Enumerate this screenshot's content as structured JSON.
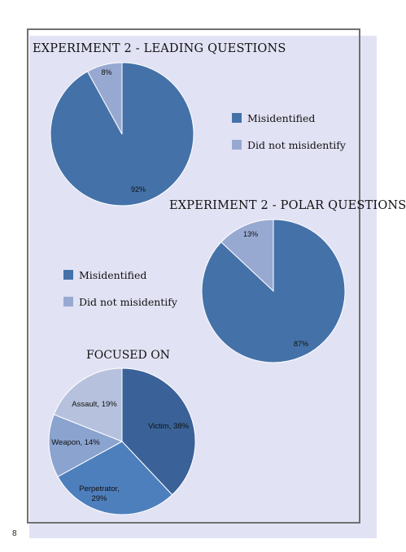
{
  "page_number": "8",
  "colors": {
    "dark_blue": "#4472a8",
    "light_blue": "#98a9d1"
  },
  "chart_data": [
    {
      "type": "pie",
      "title": "EXPERIMENT 2 - LEADING QUESTIONS",
      "categories": [
        "Misidentified",
        "Did not misidentify"
      ],
      "values": [
        92,
        8
      ],
      "data_labels": [
        "92%",
        "8%"
      ],
      "legend": {
        "placement": "right",
        "entries": [
          "Misidentified",
          "Did not misidentify"
        ]
      }
    },
    {
      "type": "pie",
      "title": "EXPERIMENT 2 - POLAR QUESTIONS",
      "categories": [
        "Misidentified",
        "Did not misidentify"
      ],
      "values": [
        87,
        13
      ],
      "data_labels": [
        "87%",
        "13%"
      ],
      "legend": {
        "placement": "left",
        "entries": [
          "Misidentified",
          "Did not misidentify"
        ]
      }
    },
    {
      "type": "pie",
      "title": "FOCUSED ON",
      "categories": [
        "Victim",
        "Perpetrator",
        "Weapon",
        "Assault"
      ],
      "values": [
        38,
        29,
        14,
        19
      ],
      "data_labels": [
        "Victim, 38%",
        "Perpetrator, 29%",
        "Weapon, 14%",
        "Assault, 19%"
      ]
    }
  ]
}
